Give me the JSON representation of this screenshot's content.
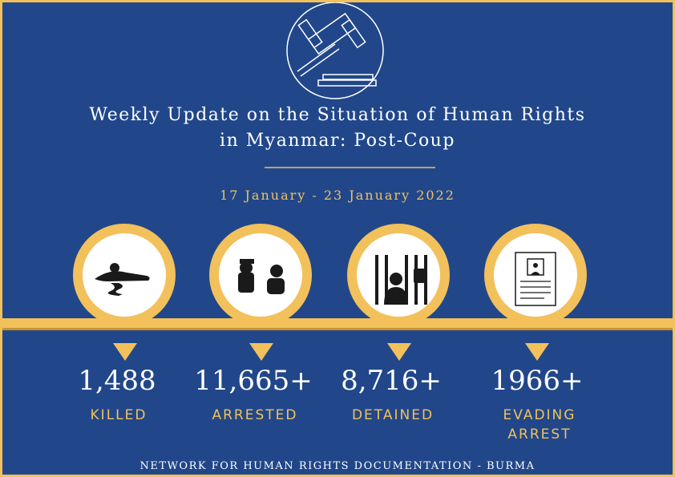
{
  "header": {
    "title_lines": [
      "Weekly Update on the Situation of Human Rights",
      "in Myanmar: Post-Coup"
    ],
    "date_range": "17 January - 23 January 2022"
  },
  "stats": [
    {
      "value": "1,488",
      "label": "KILLED"
    },
    {
      "value": "11,665+",
      "label": "ARRESTED"
    },
    {
      "value": "8,716+",
      "label": "DETAINED"
    },
    {
      "value": "1966+",
      "label": "EVADING ARREST"
    }
  ],
  "footer": "NETWORK FOR HUMAN RIGHTS DOCUMENTATION - BURMA"
}
